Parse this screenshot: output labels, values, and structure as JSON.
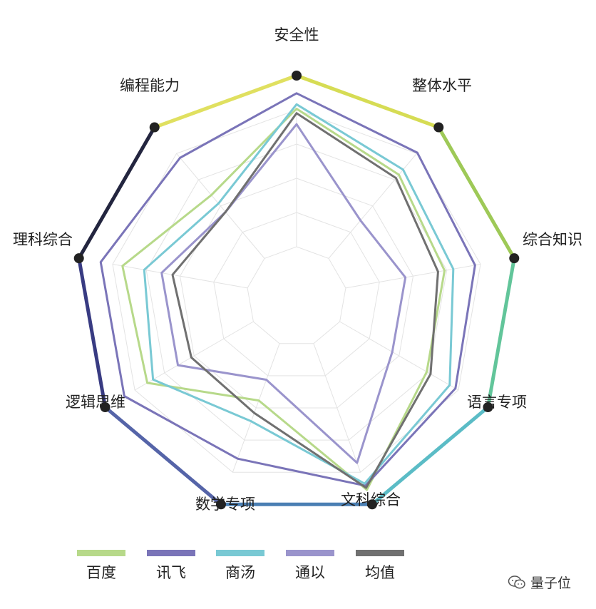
{
  "chart_data": {
    "type": "radar",
    "axes": [
      "安全性",
      "整体水平",
      "综合知识",
      "语言专项",
      "文科综合",
      "数学专项",
      "逻辑思维",
      "理科综合",
      "编程能力"
    ],
    "rmax": 100,
    "grid": true,
    "series": [
      {
        "name": "百度",
        "color": "#b7d98a",
        "values": [
          85,
          72,
          68,
          68,
          93,
          50,
          78,
          80,
          60
        ]
      },
      {
        "name": "讯飞",
        "color": "#7a74b8",
        "values": [
          92,
          85,
          82,
          83,
          91,
          78,
          90,
          90,
          82
        ]
      },
      {
        "name": "商汤",
        "color": "#79c9d4",
        "values": [
          87,
          75,
          72,
          80,
          90,
          60,
          75,
          70,
          55
        ]
      },
      {
        "name": "通以",
        "color": "#9a94cc",
        "values": [
          78,
          45,
          50,
          50,
          80,
          40,
          62,
          62,
          50
        ]
      },
      {
        "name": "均值",
        "color": "#707070",
        "values": [
          83,
          70,
          65,
          70,
          92,
          56,
          55,
          57,
          50
        ]
      }
    ],
    "legend_position": "bottom"
  },
  "watermark": {
    "icon": "wechat-icon",
    "text": "量子位"
  },
  "outline_colors": [
    "#d6dc54",
    "#9ec957",
    "#62c59a",
    "#5bbcc6",
    "#4a7fb3",
    "#5564a8",
    "#383b82",
    "#23253f",
    "#e0e060"
  ]
}
